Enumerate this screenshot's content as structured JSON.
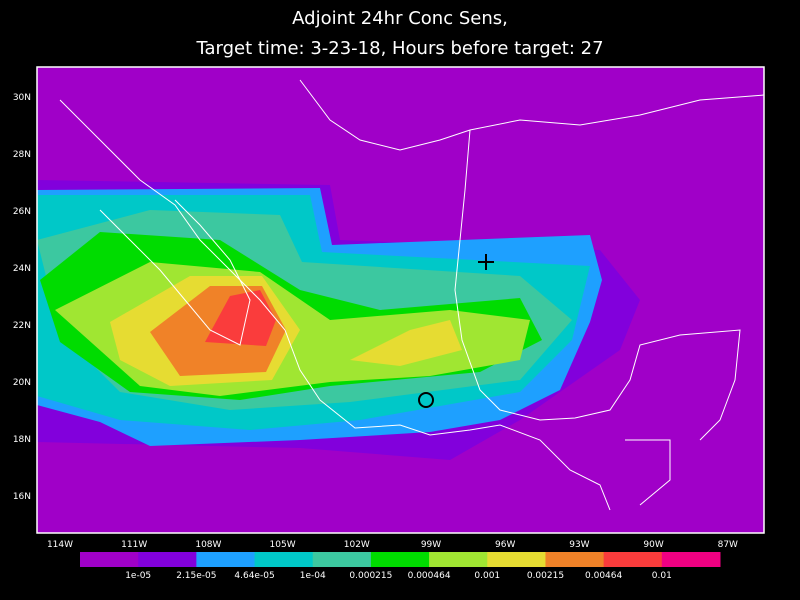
{
  "title": {
    "line1": "Adjoint 24hr Conc Sens,",
    "line2": "Target time: 3-23-18, Hours before target: 27"
  },
  "map": {
    "lat_labels": [
      "30N",
      "28N",
      "26N",
      "24N",
      "22N",
      "20N",
      "18N",
      "16N"
    ],
    "lon_labels": [
      "114W",
      "111W",
      "108W",
      "105W",
      "102W",
      "99W",
      "96W",
      "93W",
      "90W",
      "87W"
    ]
  },
  "colorbar": {
    "colors": [
      "#a000c8",
      "#8200dc",
      "#1ea0ff",
      "#00c8c8",
      "#3cc8a0",
      "#00dc00",
      "#a0e632",
      "#e6dc32",
      "#f08228",
      "#fa3c3c",
      "#f00082"
    ],
    "labels": [
      "1e-05",
      "2.15e-05",
      "4.64e-05",
      "1e-04",
      "0.000215",
      "0.000464",
      "0.001",
      "0.00215",
      "0.00464",
      "0.01"
    ]
  }
}
